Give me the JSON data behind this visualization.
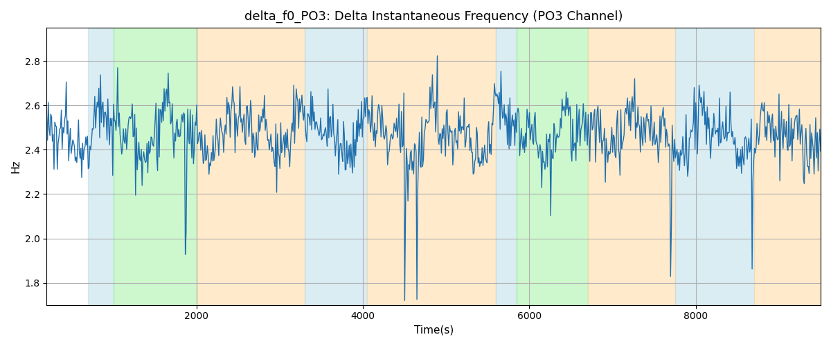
{
  "title": "delta_f0_PO3: Delta Instantaneous Frequency (PO3 Channel)",
  "xlabel": "Time(s)",
  "ylabel": "Hz",
  "ylim": [
    1.7,
    2.95
  ],
  "xlim_left": 200,
  "xlim_right": 9500,
  "line_color": "#1f6fad",
  "line_width": 1.0,
  "background_color": "#ffffff",
  "grid_color": "#b0b0b0",
  "title_fontsize": 13,
  "label_fontsize": 11,
  "tick_fontsize": 10,
  "colored_bands": [
    {
      "xmin": 700,
      "xmax": 1000,
      "color": "#add8e6",
      "alpha": 0.45
    },
    {
      "xmin": 1000,
      "xmax": 2000,
      "color": "#90ee90",
      "alpha": 0.45
    },
    {
      "xmin": 2000,
      "xmax": 3300,
      "color": "#ffd699",
      "alpha": 0.5
    },
    {
      "xmin": 3300,
      "xmax": 4050,
      "color": "#add8e6",
      "alpha": 0.45
    },
    {
      "xmin": 4050,
      "xmax": 5600,
      "color": "#ffd699",
      "alpha": 0.5
    },
    {
      "xmin": 5600,
      "xmax": 5850,
      "color": "#add8e6",
      "alpha": 0.45
    },
    {
      "xmin": 5850,
      "xmax": 6700,
      "color": "#90ee90",
      "alpha": 0.45
    },
    {
      "xmin": 6700,
      "xmax": 7750,
      "color": "#ffd699",
      "alpha": 0.5
    },
    {
      "xmin": 7750,
      "xmax": 8700,
      "color": "#add8e6",
      "alpha": 0.45
    },
    {
      "xmin": 8700,
      "xmax": 9500,
      "color": "#ffd699",
      "alpha": 0.5
    }
  ],
  "seed": 1234,
  "n_points": 950,
  "base_freq": 2.475,
  "noise_std": 0.065,
  "yticks": [
    1.8,
    2.0,
    2.2,
    2.4,
    2.6,
    2.8
  ],
  "xticks": [
    2000,
    4000,
    6000,
    8000
  ]
}
